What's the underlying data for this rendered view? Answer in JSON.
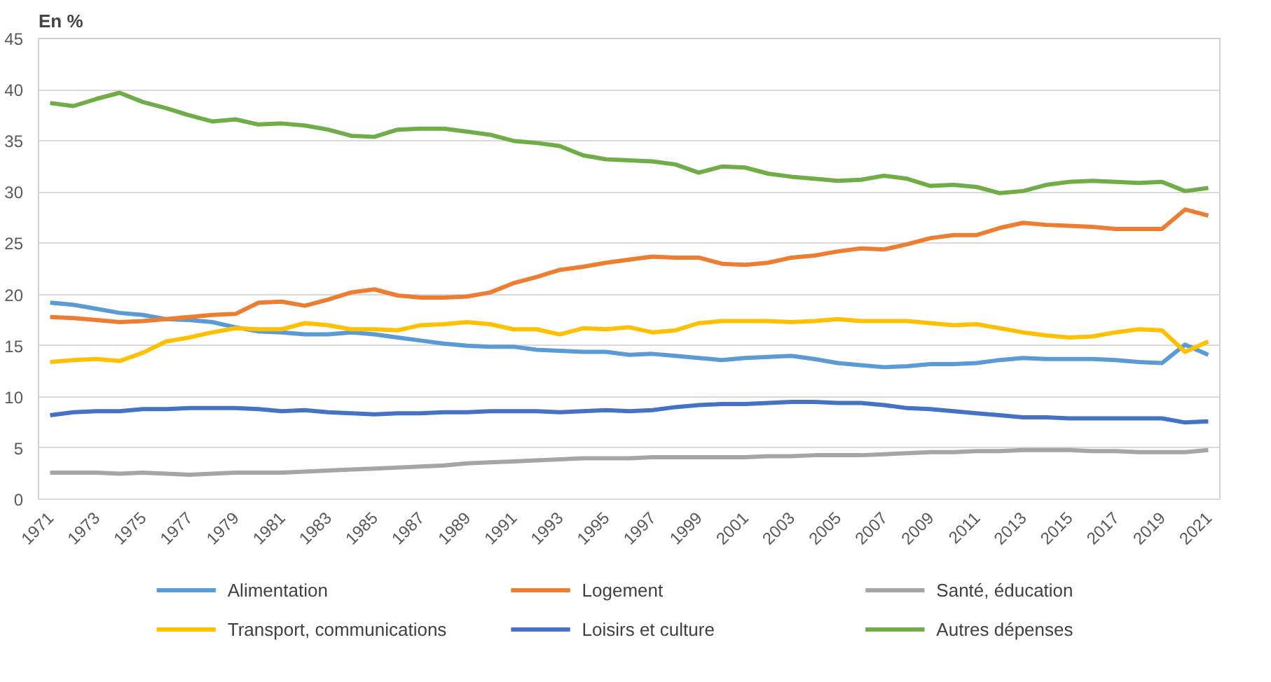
{
  "chart_data": {
    "type": "line",
    "ylabel": "En %",
    "x": [
      1971,
      1972,
      1973,
      1974,
      1975,
      1976,
      1977,
      1978,
      1979,
      1980,
      1981,
      1982,
      1983,
      1984,
      1985,
      1986,
      1987,
      1988,
      1989,
      1990,
      1991,
      1992,
      1993,
      1994,
      1995,
      1996,
      1997,
      1998,
      1999,
      2000,
      2001,
      2002,
      2003,
      2004,
      2005,
      2006,
      2007,
      2008,
      2009,
      2010,
      2011,
      2012,
      2013,
      2014,
      2015,
      2016,
      2017,
      2018,
      2019,
      2020,
      2021
    ],
    "xlim": [
      1970.5,
      2021.5
    ],
    "xticks": [
      1971,
      1973,
      1975,
      1977,
      1979,
      1981,
      1983,
      1985,
      1987,
      1989,
      1991,
      1993,
      1995,
      1997,
      1999,
      2001,
      2003,
      2005,
      2007,
      2009,
      2011,
      2013,
      2015,
      2017,
      2019,
      2021
    ],
    "ylim": [
      0,
      45
    ],
    "yticks": [
      0,
      5,
      10,
      15,
      20,
      25,
      30,
      35,
      40,
      45
    ],
    "grid": "y",
    "legend": "bottom",
    "marker": "none",
    "line_style": "solid",
    "series": [
      {
        "name": "Alimentation",
        "color": "#5b9bd5",
        "values": [
          19.2,
          19.0,
          18.6,
          18.2,
          18.0,
          17.6,
          17.5,
          17.3,
          16.8,
          16.4,
          16.3,
          16.1,
          16.1,
          16.3,
          16.1,
          15.8,
          15.5,
          15.2,
          15.0,
          14.9,
          14.9,
          14.6,
          14.5,
          14.4,
          14.4,
          14.1,
          14.2,
          14.0,
          13.8,
          13.6,
          13.8,
          13.9,
          14.0,
          13.7,
          13.3,
          13.1,
          12.9,
          13.0,
          13.2,
          13.2,
          13.3,
          13.6,
          13.8,
          13.7,
          13.7,
          13.7,
          13.6,
          13.4,
          13.3,
          15.1,
          14.1
        ]
      },
      {
        "name": "Logement",
        "color": "#ed7d31",
        "values": [
          17.8,
          17.7,
          17.5,
          17.3,
          17.4,
          17.6,
          17.8,
          18.0,
          18.1,
          19.2,
          19.3,
          18.9,
          19.5,
          20.2,
          20.5,
          19.9,
          19.7,
          19.7,
          19.8,
          20.2,
          21.1,
          21.7,
          22.4,
          22.7,
          23.1,
          23.4,
          23.7,
          23.6,
          23.6,
          23.0,
          22.9,
          23.1,
          23.6,
          23.8,
          24.2,
          24.5,
          24.4,
          24.9,
          25.5,
          25.8,
          25.8,
          26.5,
          27.0,
          26.8,
          26.7,
          26.6,
          26.4,
          26.4,
          26.4,
          28.3,
          27.7
        ]
      },
      {
        "name": "Santé, éducation",
        "color": "#a5a5a5",
        "values": [
          2.6,
          2.6,
          2.6,
          2.5,
          2.6,
          2.5,
          2.4,
          2.5,
          2.6,
          2.6,
          2.6,
          2.7,
          2.8,
          2.9,
          3.0,
          3.1,
          3.2,
          3.3,
          3.5,
          3.6,
          3.7,
          3.8,
          3.9,
          4.0,
          4.0,
          4.0,
          4.1,
          4.1,
          4.1,
          4.1,
          4.1,
          4.2,
          4.2,
          4.3,
          4.3,
          4.3,
          4.4,
          4.5,
          4.6,
          4.6,
          4.7,
          4.7,
          4.8,
          4.8,
          4.8,
          4.7,
          4.7,
          4.6,
          4.6,
          4.6,
          4.8
        ]
      },
      {
        "name": "Transport, communications",
        "color": "#ffc000",
        "values": [
          13.4,
          13.6,
          13.7,
          13.5,
          14.3,
          15.4,
          15.8,
          16.3,
          16.7,
          16.6,
          16.6,
          17.2,
          17.0,
          16.6,
          16.6,
          16.5,
          17.0,
          17.1,
          17.3,
          17.1,
          16.6,
          16.6,
          16.1,
          16.7,
          16.6,
          16.8,
          16.3,
          16.5,
          17.2,
          17.4,
          17.4,
          17.4,
          17.3,
          17.4,
          17.6,
          17.4,
          17.4,
          17.4,
          17.2,
          17.0,
          17.1,
          16.7,
          16.3,
          16.0,
          15.8,
          15.9,
          16.3,
          16.6,
          16.5,
          14.4,
          15.4
        ]
      },
      {
        "name": "Loisirs et culture",
        "color": "#4472c4",
        "values": [
          8.2,
          8.5,
          8.6,
          8.6,
          8.8,
          8.8,
          8.9,
          8.9,
          8.9,
          8.8,
          8.6,
          8.7,
          8.5,
          8.4,
          8.3,
          8.4,
          8.4,
          8.5,
          8.5,
          8.6,
          8.6,
          8.6,
          8.5,
          8.6,
          8.7,
          8.6,
          8.7,
          9.0,
          9.2,
          9.3,
          9.3,
          9.4,
          9.5,
          9.5,
          9.4,
          9.4,
          9.2,
          8.9,
          8.8,
          8.6,
          8.4,
          8.2,
          8.0,
          8.0,
          7.9,
          7.9,
          7.9,
          7.9,
          7.9,
          7.5,
          7.6
        ]
      },
      {
        "name": "Autres dépenses",
        "color": "#70ad47",
        "values": [
          38.7,
          38.4,
          39.1,
          39.7,
          38.8,
          38.2,
          37.5,
          36.9,
          37.1,
          36.6,
          36.7,
          36.5,
          36.1,
          35.5,
          35.4,
          36.1,
          36.2,
          36.2,
          35.9,
          35.6,
          35.0,
          34.8,
          34.5,
          33.6,
          33.2,
          33.1,
          33.0,
          32.7,
          31.9,
          32.5,
          32.4,
          31.8,
          31.5,
          31.3,
          31.1,
          31.2,
          31.6,
          31.3,
          30.6,
          30.7,
          30.5,
          29.9,
          30.1,
          30.7,
          31.0,
          31.1,
          31.0,
          30.9,
          31.0,
          30.1,
          30.4
        ]
      }
    ]
  }
}
